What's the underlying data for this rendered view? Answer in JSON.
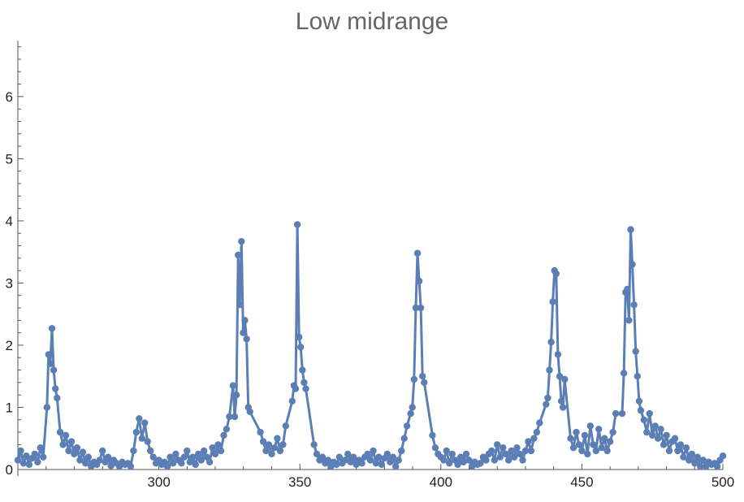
{
  "chart_data": {
    "type": "line",
    "title": "Low midrange",
    "xlabel": "",
    "ylabel": "",
    "xlim": [
      250,
      500
    ],
    "ylim": [
      0,
      6.9
    ],
    "x_ticks": [
      300,
      350,
      400,
      450,
      500
    ],
    "y_ticks": [
      0,
      1,
      2,
      3,
      4,
      5,
      6
    ],
    "grid": false,
    "marker": "circle",
    "color": "#5b7fb4",
    "baseline": [
      [
        250,
        0.15
      ],
      [
        251,
        0.3
      ],
      [
        252,
        0.1
      ],
      [
        253,
        0.22
      ],
      [
        254,
        0.08
      ],
      [
        255,
        0.18
      ],
      [
        256,
        0.25
      ],
      [
        257,
        0.12
      ],
      [
        258,
        0.35
      ],
      [
        259,
        0.2
      ],
      [
        260,
        0.7
      ],
      [
        264,
        0.8
      ],
      [
        265,
        0.6
      ],
      [
        266,
        0.4
      ],
      [
        267,
        0.55
      ],
      [
        268,
        0.3
      ],
      [
        269,
        0.45
      ],
      [
        270,
        0.25
      ],
      [
        271,
        0.35
      ],
      [
        272,
        0.15
      ],
      [
        273,
        0.28
      ],
      [
        274,
        0.1
      ],
      [
        275,
        0.2
      ],
      [
        276,
        0.05
      ],
      [
        277,
        0.12
      ],
      [
        278,
        0.08
      ],
      [
        279,
        0.15
      ],
      [
        280,
        0.3
      ],
      [
        281,
        0.12
      ],
      [
        282,
        0.2
      ],
      [
        283,
        0.06
      ],
      [
        284,
        0.15
      ],
      [
        285,
        0.1
      ],
      [
        286,
        0.05
      ],
      [
        287,
        0.12
      ],
      [
        288,
        0.08
      ],
      [
        289,
        0.1
      ],
      [
        290,
        0.05
      ],
      [
        291,
        0.3
      ],
      [
        292,
        0.6
      ],
      [
        293,
        0.82
      ],
      [
        294,
        0.5
      ],
      [
        295,
        0.75
      ],
      [
        296,
        0.45
      ],
      [
        297,
        0.3
      ],
      [
        298,
        0.2
      ],
      [
        299,
        0.1
      ],
      [
        300,
        0.15
      ],
      [
        301,
        0.08
      ],
      [
        302,
        0.12
      ],
      [
        303,
        0.05
      ],
      [
        304,
        0.2
      ],
      [
        305,
        0.1
      ],
      [
        306,
        0.25
      ],
      [
        307,
        0.15
      ],
      [
        308,
        0.1
      ],
      [
        309,
        0.2
      ],
      [
        310,
        0.3
      ],
      [
        311,
        0.12
      ],
      [
        312,
        0.2
      ],
      [
        313,
        0.08
      ],
      [
        314,
        0.25
      ],
      [
        315,
        0.15
      ],
      [
        316,
        0.3
      ],
      [
        317,
        0.2
      ],
      [
        318,
        0.12
      ],
      [
        319,
        0.35
      ],
      [
        320,
        0.25
      ],
      [
        321,
        0.4
      ],
      [
        322,
        0.3
      ],
      [
        323,
        0.55
      ],
      [
        324,
        0.65
      ],
      [
        325,
        0.85
      ],
      [
        336,
        0.6
      ],
      [
        337,
        0.45
      ],
      [
        338,
        0.3
      ],
      [
        339,
        0.4
      ],
      [
        340,
        0.25
      ],
      [
        341,
        0.35
      ],
      [
        342,
        0.5
      ],
      [
        343,
        0.3
      ],
      [
        344,
        0.4
      ],
      [
        345,
        0.7
      ],
      [
        355,
        0.4
      ],
      [
        356,
        0.25
      ],
      [
        357,
        0.15
      ],
      [
        358,
        0.2
      ],
      [
        359,
        0.1
      ],
      [
        360,
        0.15
      ],
      [
        361,
        0.05
      ],
      [
        362,
        0.12
      ],
      [
        363,
        0.08
      ],
      [
        364,
        0.2
      ],
      [
        365,
        0.1
      ],
      [
        366,
        0.15
      ],
      [
        367,
        0.25
      ],
      [
        368,
        0.12
      ],
      [
        369,
        0.2
      ],
      [
        370,
        0.08
      ],
      [
        371,
        0.15
      ],
      [
        372,
        0.1
      ],
      [
        373,
        0.2
      ],
      [
        374,
        0.25
      ],
      [
        375,
        0.15
      ],
      [
        376,
        0.3
      ],
      [
        377,
        0.1
      ],
      [
        378,
        0.2
      ],
      [
        379,
        0.08
      ],
      [
        380,
        0.18
      ],
      [
        381,
        0.25
      ],
      [
        382,
        0.12
      ],
      [
        383,
        0.2
      ],
      [
        384,
        0.05
      ],
      [
        385,
        0.15
      ],
      [
        386,
        0.3
      ],
      [
        387,
        0.5
      ],
      [
        388,
        0.7
      ],
      [
        397,
        0.55
      ],
      [
        398,
        0.35
      ],
      [
        399,
        0.25
      ],
      [
        400,
        0.2
      ],
      [
        401,
        0.15
      ],
      [
        402,
        0.3
      ],
      [
        403,
        0.1
      ],
      [
        404,
        0.25
      ],
      [
        405,
        0.15
      ],
      [
        406,
        0.08
      ],
      [
        407,
        0.2
      ],
      [
        408,
        0.12
      ],
      [
        409,
        0.25
      ],
      [
        410,
        0.15
      ],
      [
        411,
        0.05
      ],
      [
        412,
        0.12
      ],
      [
        413,
        0.08
      ],
      [
        414,
        0.1
      ],
      [
        415,
        0.2
      ],
      [
        416,
        0.15
      ],
      [
        417,
        0.25
      ],
      [
        418,
        0.3
      ],
      [
        419,
        0.15
      ],
      [
        420,
        0.4
      ],
      [
        421,
        0.2
      ],
      [
        422,
        0.35
      ],
      [
        423,
        0.25
      ],
      [
        424,
        0.15
      ],
      [
        425,
        0.3
      ],
      [
        426,
        0.2
      ],
      [
        427,
        0.35
      ],
      [
        428,
        0.25
      ],
      [
        429,
        0.15
      ],
      [
        430,
        0.3
      ],
      [
        431,
        0.45
      ],
      [
        432,
        0.3
      ],
      [
        433,
        0.5
      ],
      [
        434,
        0.6
      ],
      [
        435,
        0.75
      ],
      [
        446,
        0.5
      ],
      [
        447,
        0.35
      ],
      [
        448,
        0.6
      ],
      [
        449,
        0.4
      ],
      [
        450,
        0.3
      ],
      [
        451,
        0.55
      ],
      [
        452,
        0.25
      ],
      [
        453,
        0.7
      ],
      [
        454,
        0.4
      ],
      [
        455,
        0.3
      ],
      [
        456,
        0.65
      ],
      [
        457,
        0.35
      ],
      [
        458,
        0.5
      ],
      [
        459,
        0.3
      ],
      [
        460,
        0.45
      ],
      [
        461,
        0.6
      ],
      [
        462,
        0.9
      ],
      [
        472,
        0.8
      ],
      [
        473,
        0.6
      ],
      [
        474,
        0.9
      ],
      [
        475,
        0.55
      ],
      [
        476,
        0.7
      ],
      [
        477,
        0.5
      ],
      [
        478,
        0.65
      ],
      [
        479,
        0.4
      ],
      [
        480,
        0.55
      ],
      [
        481,
        0.3
      ],
      [
        482,
        0.45
      ],
      [
        483,
        0.5
      ],
      [
        484,
        0.3
      ],
      [
        485,
        0.4
      ],
      [
        486,
        0.2
      ],
      [
        487,
        0.35
      ],
      [
        488,
        0.15
      ],
      [
        489,
        0.25
      ],
      [
        490,
        0.1
      ],
      [
        491,
        0.2
      ],
      [
        492,
        0.05
      ],
      [
        493,
        0.15
      ],
      [
        494,
        0.05
      ],
      [
        495,
        0.12
      ],
      [
        496,
        0.08
      ],
      [
        497,
        0.1
      ],
      [
        498,
        0.05
      ],
      [
        499,
        0.15
      ],
      [
        500,
        0.22
      ]
    ],
    "peaks": [
      {
        "center": 262.0,
        "x": [
          260.3,
          260.9,
          261.5,
          262.1,
          262.7,
          263.3,
          263.9
        ],
        "y": [
          1.0,
          1.85,
          1.7,
          2.27,
          1.6,
          1.3,
          1.15
        ]
      },
      {
        "center": 329.0,
        "x": [
          326.3,
          326.9,
          327.5,
          328.1,
          328.7,
          329.3,
          329.9,
          330.5,
          331.1,
          331.7,
          332.3
        ],
        "y": [
          1.35,
          0.85,
          1.2,
          3.45,
          2.65,
          3.67,
          2.2,
          2.4,
          2.1,
          1.0,
          0.93
        ]
      },
      {
        "center": 349.0,
        "x": [
          347.3,
          347.9,
          348.5,
          349.1,
          349.7,
          350.3,
          350.9,
          351.5,
          352.1
        ],
        "y": [
          1.1,
          1.35,
          1.3,
          3.94,
          2.13,
          1.97,
          1.6,
          1.4,
          1.3
        ]
      },
      {
        "center": 392.0,
        "x": [
          389.3,
          389.9,
          390.5,
          391.1,
          391.7,
          392.3,
          392.9,
          393.5,
          394.1
        ],
        "y": [
          0.9,
          1.0,
          1.45,
          2.6,
          3.48,
          3.03,
          2.6,
          1.5,
          1.4
        ]
      },
      {
        "center": 440.0,
        "x": [
          437.3,
          437.9,
          438.5,
          439.1,
          439.7,
          440.3,
          440.9,
          441.5,
          442.1,
          442.7,
          443.3,
          443.9
        ],
        "y": [
          1.05,
          1.15,
          1.6,
          2.05,
          2.7,
          3.2,
          3.15,
          1.85,
          1.5,
          1.1,
          1.0,
          1.45
        ]
      },
      {
        "center": 467.0,
        "x": [
          464.3,
          464.9,
          465.5,
          466.1,
          466.7,
          467.3,
          467.9,
          468.5,
          469.1,
          469.7,
          470.3,
          470.9
        ],
        "y": [
          0.9,
          1.55,
          2.85,
          2.9,
          2.4,
          3.86,
          3.3,
          2.65,
          1.9,
          1.5,
          1.1,
          0.95
        ]
      }
    ]
  }
}
